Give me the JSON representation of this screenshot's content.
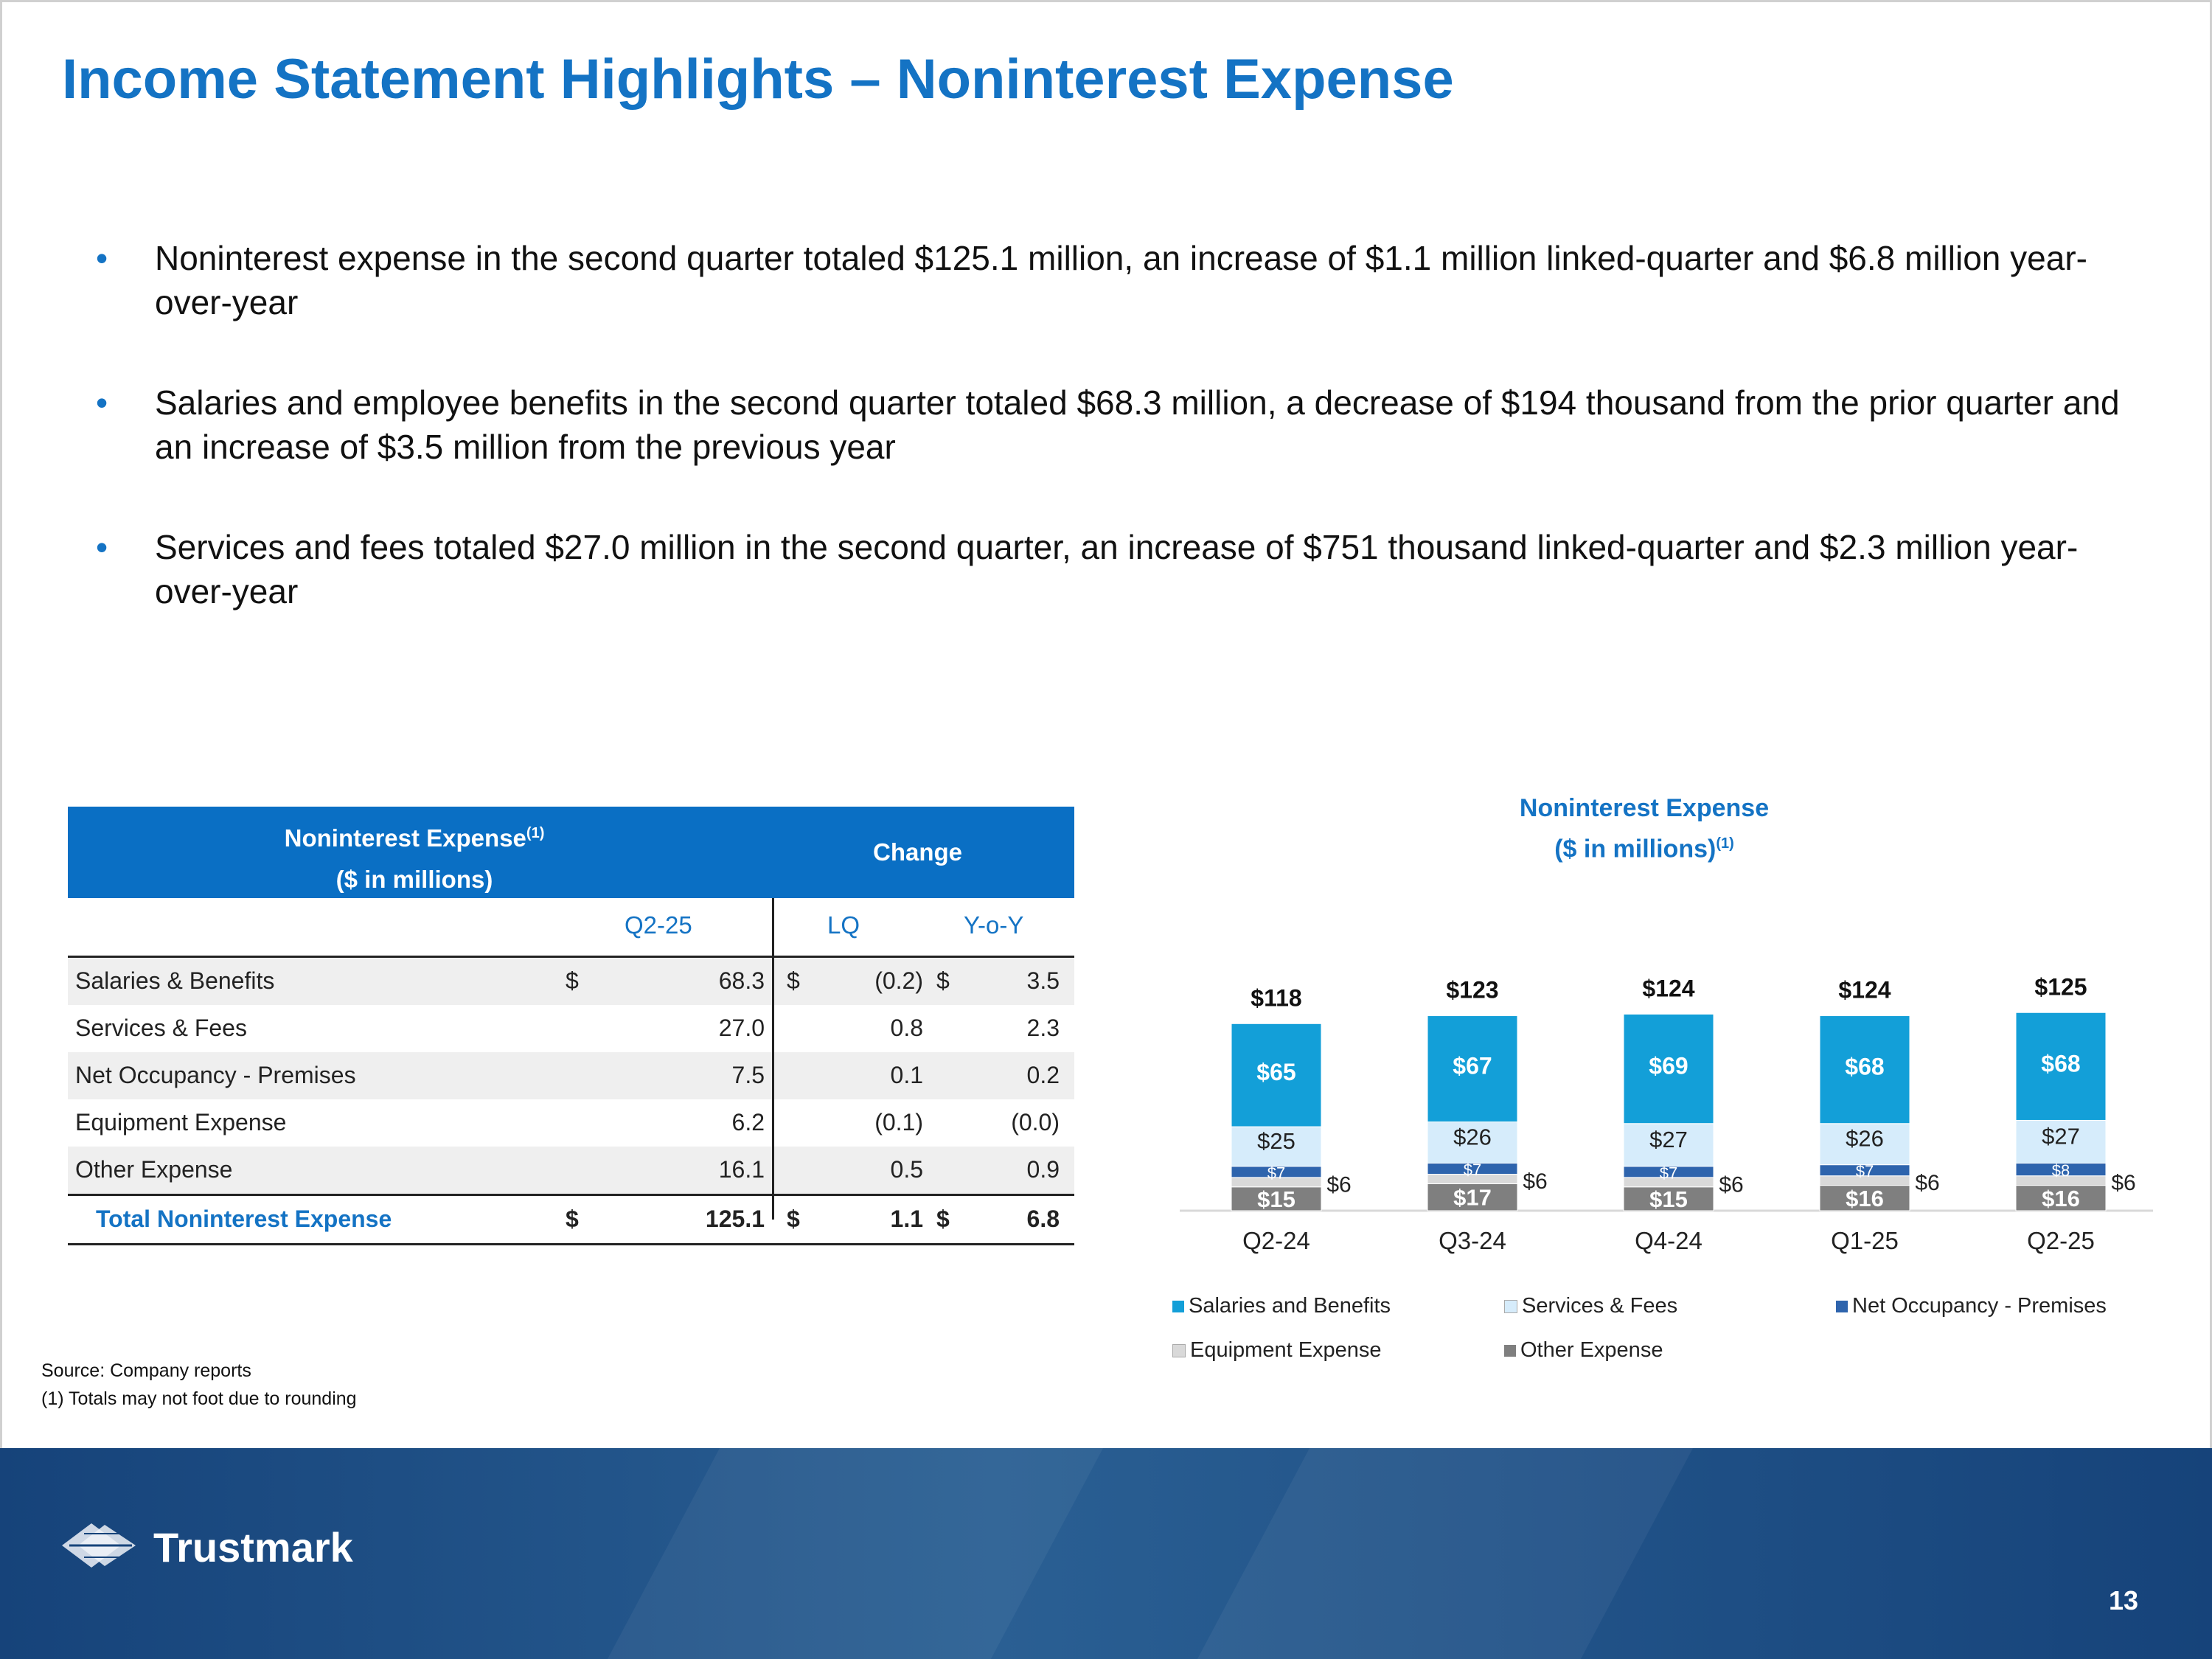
{
  "slide": {
    "title": "Income Statement Highlights – Noninterest Expense",
    "page_number": "13"
  },
  "bullets": [
    "Noninterest expense in the second quarter totaled $125.1 million, an increase of $1.1 million linked-quarter and $6.8 million year-over-year",
    "Salaries and employee benefits in the second quarter totaled $68.3 million, a decrease of $194 thousand from the prior quarter and an increase of $3.5 million from the previous year",
    "Services and fees totaled $27.0 million in the second quarter, an increase of $751 thousand linked-quarter and $2.3 million year-over-year"
  ],
  "table": {
    "header_line1": "Noninterest Expense",
    "header_sup": "(1)",
    "header_line2": "($ in millions)",
    "change_header": "Change",
    "col_q": "Q2-25",
    "col_lq": "LQ",
    "col_yoy": "Y-o-Y",
    "rows": [
      {
        "label": "Salaries & Benefits",
        "d1": "$",
        "q": "68.3",
        "d2": "$",
        "lq": "(0.2)",
        "d3": "$",
        "yoy": "3.5"
      },
      {
        "label": "Services & Fees",
        "d1": "",
        "q": "27.0",
        "d2": "",
        "lq": "0.8",
        "d3": "",
        "yoy": "2.3"
      },
      {
        "label": "Net Occupancy - Premises",
        "d1": "",
        "q": "7.5",
        "d2": "",
        "lq": "0.1",
        "d3": "",
        "yoy": "0.2"
      },
      {
        "label": "Equipment Expense",
        "d1": "",
        "q": "6.2",
        "d2": "",
        "lq": "(0.1)",
        "d3": "",
        "yoy": "(0.0)"
      },
      {
        "label": "Other Expense",
        "d1": "",
        "q": "16.1",
        "d2": "",
        "lq": "0.5",
        "d3": "",
        "yoy": "0.9"
      },
      {
        "label": "Total Noninterest Expense",
        "d1": "$",
        "q": "125.1",
        "d2": "$",
        "lq": "1.1",
        "d3": "$",
        "yoy": "6.8"
      }
    ]
  },
  "source": {
    "line1": "Source: Company reports",
    "line2": "(1) Totals may not foot due to rounding"
  },
  "chart_data": {
    "type": "bar",
    "stacked": true,
    "title": "Noninterest Expense",
    "subtitle": "($ in millions)",
    "title_sup": "(1)",
    "categories": [
      "Q2-24",
      "Q3-24",
      "Q4-24",
      "Q1-25",
      "Q2-25"
    ],
    "totals": [
      118,
      123,
      124,
      124,
      125
    ],
    "total_labels": [
      "$118",
      "$123",
      "$124",
      "$124",
      "$125"
    ],
    "series": [
      {
        "name": "Other Expense",
        "color": "#7f7f7f",
        "values": [
          15,
          17,
          15,
          16,
          16
        ],
        "labels": [
          "$15",
          "$17",
          "$15",
          "$16",
          "$16"
        ]
      },
      {
        "name": "Equipment Expense",
        "color": "#d9d9d9",
        "values": [
          6,
          6,
          6,
          6,
          6
        ],
        "labels": [
          "$6",
          "$6",
          "$6",
          "$6",
          "$6"
        ]
      },
      {
        "name": "Net Occupancy - Premises",
        "color": "#2e64ad",
        "values": [
          7,
          7,
          7,
          7,
          8
        ],
        "labels": [
          "$7",
          "$7",
          "$7",
          "$7",
          "$8"
        ]
      },
      {
        "name": "Services & Fees",
        "color": "#d6ecfb",
        "values": [
          25,
          26,
          27,
          26,
          27
        ],
        "labels": [
          "$25",
          "$26",
          "$27",
          "$26",
          "$27"
        ]
      },
      {
        "name": "Salaries and Benefits",
        "color": "#139fd8",
        "values": [
          65,
          67,
          69,
          68,
          68
        ],
        "labels": [
          "$65",
          "$67",
          "$69",
          "$68",
          "$68"
        ]
      }
    ],
    "legend_position": "bottom",
    "grid": false
  },
  "footer": {
    "logo_text": "Trustmark",
    "logo_icon": "trustmark-logo-icon"
  }
}
